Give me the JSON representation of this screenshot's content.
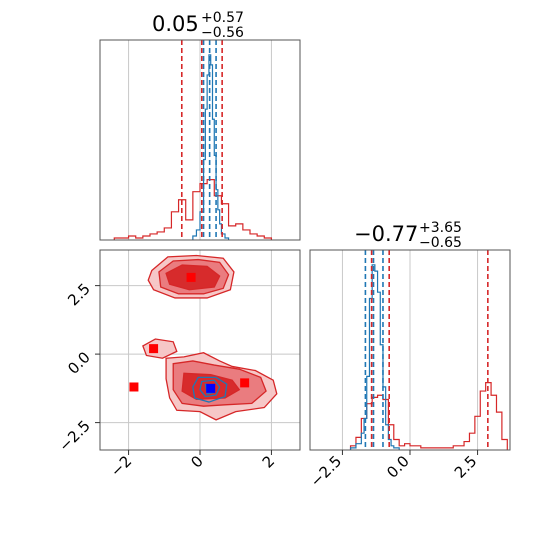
{
  "chart_data": {
    "type": "corner",
    "parameters": [
      "param_1",
      "param_2"
    ],
    "colors": {
      "red": "#d62728",
      "blue": "#1f77b4",
      "red_fill_dark": "#d62728",
      "red_fill_mid": "#e9787b",
      "red_fill_light": "#f6c4c4"
    },
    "panels": [
      {
        "id": "hist_param_1",
        "type": "histogram",
        "title": {
          "value": "0.05",
          "plus": "+0.57",
          "minus": "−0.56"
        },
        "xlim": [
          -2.8,
          2.8
        ],
        "red_quantiles": [
          -0.51,
          0.05,
          0.62
        ],
        "blue_quantiles": [
          0.1,
          0.27,
          0.45
        ],
        "series": [
          {
            "name": "red",
            "color": "#d62728",
            "bins": [
              -2.4,
              -2.2,
              -2.0,
              -1.8,
              -1.6,
              -1.4,
              -1.2,
              -1.0,
              -0.8,
              -0.6,
              -0.4,
              -0.2,
              0.0,
              0.2,
              0.4,
              0.6,
              0.8,
              1.0,
              1.2,
              1.4,
              1.6,
              1.8,
              2.0
            ],
            "heights": [
              0.01,
              0.01,
              0.02,
              0.01,
              0.02,
              0.03,
              0.04,
              0.06,
              0.14,
              0.2,
              0.1,
              0.24,
              0.28,
              0.3,
              0.22,
              0.18,
              0.07,
              0.08,
              0.05,
              0.03,
              0.02,
              0.01
            ]
          },
          {
            "name": "blue",
            "color": "#1f77b4",
            "bins": [
              -0.2,
              -0.1,
              0.0,
              0.1,
              0.15,
              0.2,
              0.25,
              0.3,
              0.35,
              0.4,
              0.45,
              0.5,
              0.55,
              0.6,
              0.7,
              0.8
            ],
            "heights": [
              0.02,
              0.05,
              0.14,
              0.4,
              0.65,
              0.82,
              0.92,
              0.87,
              0.6,
              0.42,
              0.25,
              0.15,
              0.08,
              0.03,
              0.01
            ]
          }
        ]
      },
      {
        "id": "hist_param_2",
        "type": "histogram",
        "title": {
          "value": "−0.77",
          "plus": "+3.65",
          "minus": "−0.65"
        },
        "xlim": [
          -3.7,
          3.7
        ],
        "xticks": [
          "−2.5",
          "0.0",
          "2.5"
        ],
        "xtick_values": [
          -2.5,
          0.0,
          2.5
        ],
        "red_quantiles": [
          -1.42,
          -0.77,
          2.88
        ],
        "blue_quantiles": [
          -1.65,
          -1.35,
          -1.0
        ],
        "series": [
          {
            "name": "red",
            "color": "#d62728",
            "bins": [
              -2.2,
              -2.0,
              -1.8,
              -1.6,
              -1.4,
              -1.2,
              -1.0,
              -0.8,
              -0.6,
              -0.4,
              -0.2,
              0.0,
              0.2,
              0.4,
              0.6,
              0.8,
              1.0,
              1.2,
              1.4,
              1.6,
              1.8,
              2.0,
              2.2,
              2.4,
              2.6,
              2.8,
              3.0,
              3.2,
              3.4,
              3.6
            ],
            "heights": [
              0.02,
              0.06,
              0.15,
              0.22,
              0.25,
              0.26,
              0.24,
              0.12,
              0.05,
              0.02,
              0.03,
              0.02,
              0.02,
              0.01,
              0.01,
              0.01,
              0.01,
              0.01,
              0.01,
              0.02,
              0.02,
              0.04,
              0.08,
              0.16,
              0.28,
              0.32,
              0.26,
              0.18,
              0.05
            ]
          },
          {
            "name": "blue",
            "color": "#1f77b4",
            "bins": [
              -2.2,
              -2.0,
              -1.8,
              -1.7,
              -1.6,
              -1.5,
              -1.4,
              -1.3,
              -1.2,
              -1.1,
              -1.0,
              -0.9,
              -0.8,
              -0.7,
              -0.6,
              -0.4
            ],
            "heights": [
              0.01,
              0.03,
              0.08,
              0.15,
              0.35,
              0.72,
              0.88,
              0.85,
              0.75,
              0.5,
              0.3,
              0.12,
              0.05,
              0.02,
              0.01
            ]
          }
        ]
      },
      {
        "id": "joint_param_1_param_2",
        "type": "contour",
        "xlim": [
          -2.8,
          2.8
        ],
        "ylim": [
          -3.5,
          3.8
        ],
        "xticks": [
          "−2",
          "0",
          "2"
        ],
        "xtick_values": [
          -2,
          0,
          2
        ],
        "yticks": [
          "−2.5",
          "0.0",
          "2.5"
        ],
        "ytick_values": [
          -2.5,
          0.0,
          2.5
        ],
        "red_contours": [
          {
            "level": "outer",
            "polygons": [
              [
                [
                  -1.35,
                  3.05
                ],
                [
                  -0.9,
                  3.55
                ],
                [
                  -0.1,
                  3.6
                ],
                [
                  0.65,
                  3.5
                ],
                [
                  0.95,
                  3.0
                ],
                [
                  0.85,
                  2.35
                ],
                [
                  0.2,
                  2.05
                ],
                [
                  -0.7,
                  2.05
                ],
                [
                  -1.3,
                  2.35
                ],
                [
                  -1.45,
                  2.7
                ]
              ],
              [
                [
                  -0.95,
                  -0.15
                ],
                [
                  -0.45,
                  -0.1
                ],
                [
                  0.1,
                  0.05
                ],
                [
                  0.55,
                  -0.25
                ],
                [
                  0.9,
                  -0.45
                ],
                [
                  1.55,
                  -0.6
                ],
                [
                  2.05,
                  -0.95
                ],
                [
                  2.15,
                  -1.45
                ],
                [
                  1.8,
                  -1.95
                ],
                [
                  1.0,
                  -2.1
                ],
                [
                  0.45,
                  -2.4
                ],
                [
                  0.0,
                  -2.1
                ],
                [
                  -0.65,
                  -2.05
                ],
                [
                  -0.85,
                  -1.6
                ],
                [
                  -0.95,
                  -0.9
                ]
              ],
              [
                [
                  -1.6,
                  0.3
                ],
                [
                  -1.25,
                  0.55
                ],
                [
                  -0.75,
                  0.45
                ],
                [
                  -0.65,
                  0.1
                ],
                [
                  -1.05,
                  -0.15
                ],
                [
                  -1.5,
                  -0.05
                ]
              ]
            ]
          },
          {
            "level": "mid",
            "polygons": [
              [
                [
                  -1.15,
                  3.0
                ],
                [
                  -0.75,
                  3.4
                ],
                [
                  -0.05,
                  3.45
                ],
                [
                  0.55,
                  3.35
                ],
                [
                  0.8,
                  2.9
                ],
                [
                  0.65,
                  2.4
                ],
                [
                  0.1,
                  2.2
                ],
                [
                  -0.6,
                  2.2
                ],
                [
                  -1.1,
                  2.45
                ]
              ],
              [
                [
                  -0.75,
                  -0.35
                ],
                [
                  -0.2,
                  -0.25
                ],
                [
                  0.4,
                  -0.4
                ],
                [
                  1.1,
                  -0.55
                ],
                [
                  1.7,
                  -0.85
                ],
                [
                  1.85,
                  -1.35
                ],
                [
                  1.45,
                  -1.8
                ],
                [
                  0.7,
                  -1.85
                ],
                [
                  0.1,
                  -1.9
                ],
                [
                  -0.5,
                  -1.8
                ],
                [
                  -0.75,
                  -1.3
                ]
              ]
            ]
          },
          {
            "level": "inner",
            "polygons": [
              [
                [
                  -0.95,
                  2.95
                ],
                [
                  -0.5,
                  3.25
                ],
                [
                  0.2,
                  3.2
                ],
                [
                  0.55,
                  2.85
                ],
                [
                  0.4,
                  2.45
                ],
                [
                  -0.3,
                  2.35
                ],
                [
                  -0.85,
                  2.55
                ]
              ],
              [
                [
                  -0.45,
                  -0.7
                ],
                [
                  0.3,
                  -0.75
                ],
                [
                  0.9,
                  -0.95
                ],
                [
                  1.1,
                  -1.3
                ],
                [
                  0.7,
                  -1.6
                ],
                [
                  -0.1,
                  -1.65
                ],
                [
                  -0.5,
                  -1.35
                ]
              ]
            ]
          }
        ],
        "blue_contours": [
          [
            [
              -0.05,
              -0.85
            ],
            [
              0.45,
              -0.85
            ],
            [
              0.75,
              -1.1
            ],
            [
              0.7,
              -1.55
            ],
            [
              0.25,
              -1.75
            ],
            [
              -0.15,
              -1.6
            ],
            [
              -0.2,
              -1.2
            ]
          ],
          [
            [
              0.05,
              -1.0
            ],
            [
              0.4,
              -0.95
            ],
            [
              0.55,
              -1.2
            ],
            [
              0.45,
              -1.5
            ],
            [
              0.15,
              -1.55
            ],
            [
              0.0,
              -1.3
            ]
          ],
          [
            [
              0.15,
              -1.1
            ],
            [
              0.4,
              -1.15
            ],
            [
              0.4,
              -1.4
            ],
            [
              0.2,
              -1.45
            ]
          ]
        ],
        "red_markers": [
          [
            -0.25,
            2.8
          ],
          [
            -1.3,
            0.2
          ],
          [
            -1.85,
            -1.2
          ],
          [
            1.25,
            -1.05
          ]
        ],
        "blue_markers": [
          [
            0.3,
            -1.25
          ]
        ]
      }
    ]
  }
}
